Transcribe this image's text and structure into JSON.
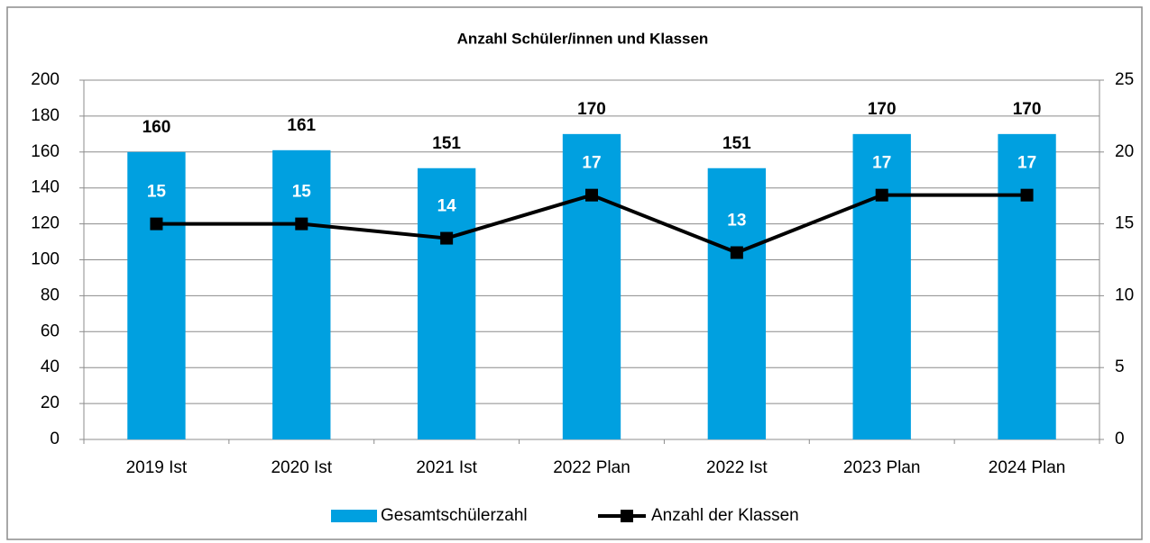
{
  "chart_data": {
    "type": "bar",
    "title": "Anzahl Schüler/innen  und Klassen",
    "categories": [
      "2019 Ist",
      "2020 Ist",
      "2021 Ist",
      "2022 Plan",
      "2022 Ist",
      "2023 Plan",
      "2024 Plan"
    ],
    "series": [
      {
        "name": "Gesamtschülerzahl",
        "type": "bar",
        "color": "#00a0e0",
        "values": [
          160,
          161,
          151,
          170,
          151,
          170,
          170
        ]
      },
      {
        "name": "Anzahl der Klassen",
        "type": "line",
        "axis": "y2",
        "color": "#000000",
        "values": [
          15,
          15,
          14,
          17,
          13,
          17,
          17
        ]
      }
    ],
    "ylim": [
      0,
      200
    ],
    "yticks": [
      0,
      20,
      40,
      60,
      80,
      100,
      120,
      140,
      160,
      180,
      200
    ],
    "y2lim": [
      0,
      25
    ],
    "y2ticks": [
      0,
      5,
      10,
      15,
      20,
      25
    ],
    "grid": true,
    "legend": "bottom"
  }
}
